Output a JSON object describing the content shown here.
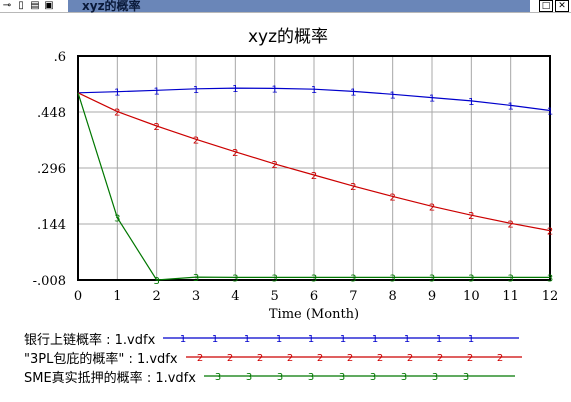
{
  "window": {
    "title": "xyz的概率",
    "toolbar_icons": [
      "pin-icon",
      "lock-icon",
      "print-icon",
      "save-icon"
    ],
    "buttons": [
      "restore-button",
      "close-button"
    ]
  },
  "chart_data": {
    "type": "line",
    "title": "xyz的概率",
    "xlabel": "Time (Month)",
    "ylabel": "",
    "x": [
      0,
      1,
      2,
      3,
      4,
      5,
      6,
      7,
      8,
      9,
      10,
      11,
      12
    ],
    "xlim": [
      0,
      12
    ],
    "ylim": [
      -0.008,
      0.6
    ],
    "ytick_labels": [
      ".6",
      ".448",
      ".296",
      ".144",
      "-.008"
    ],
    "ytick_values": [
      0.6,
      0.448,
      0.296,
      0.144,
      -0.008
    ],
    "xtick_labels": [
      "0",
      "1",
      "2",
      "3",
      "4",
      "5",
      "6",
      "7",
      "8",
      "9",
      "10",
      "11",
      "12"
    ],
    "grid": true,
    "legend_position": "bottom",
    "series": [
      {
        "name": "银行上链概率 : 1.vdfx",
        "marker": "1",
        "color": "#0000cc",
        "values": [
          0.5,
          0.503,
          0.507,
          0.511,
          0.513,
          0.512,
          0.51,
          0.504,
          0.496,
          0.487,
          0.478,
          0.466,
          0.452
        ]
      },
      {
        "name": "\"3PL包庇的概率\" : 1.vdfx",
        "marker": "2",
        "color": "#cc0000",
        "values": [
          0.5,
          0.449,
          0.41,
          0.374,
          0.34,
          0.307,
          0.277,
          0.247,
          0.219,
          0.192,
          0.168,
          0.146,
          0.126
        ]
      },
      {
        "name": "SME真实抵押的概率 : 1.vdfx",
        "marker": "3",
        "color": "#007700",
        "values": [
          0.5,
          0.161,
          -0.008,
          0.0,
          -0.001,
          -0.001,
          -0.001,
          -0.001,
          -0.001,
          -0.001,
          -0.001,
          -0.001,
          -0.001
        ]
      }
    ]
  }
}
